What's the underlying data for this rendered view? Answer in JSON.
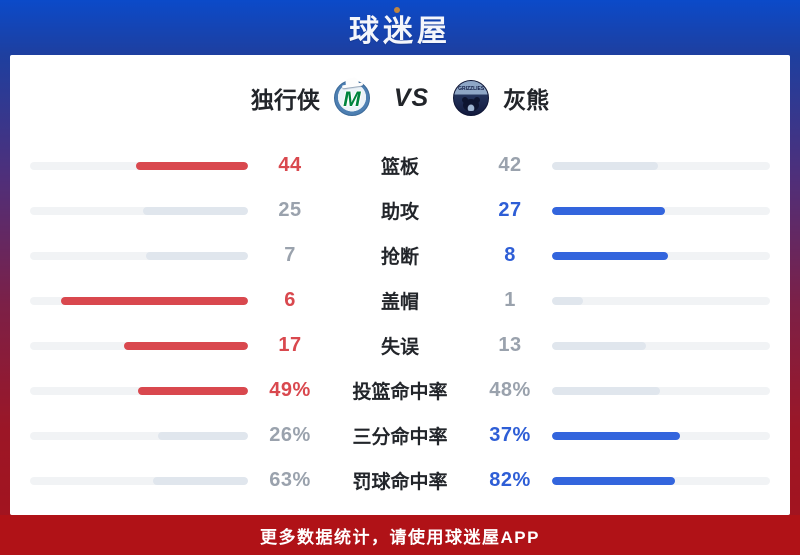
{
  "header": {
    "logo_text": "球迷屋"
  },
  "match": {
    "home_name": "独行侠",
    "away_name": "灰熊",
    "vs_label": "VS",
    "home_logo_letter": "M",
    "away_logo_text": "GRIZZLIES"
  },
  "stats": [
    {
      "label": "篮板",
      "home": "44",
      "away": "42",
      "winner": "home",
      "home_pct": 51.2,
      "away_pct": 48.8
    },
    {
      "label": "助攻",
      "home": "25",
      "away": "27",
      "winner": "away",
      "home_pct": 48.1,
      "away_pct": 51.9
    },
    {
      "label": "抢断",
      "home": "7",
      "away": "8",
      "winner": "away",
      "home_pct": 46.7,
      "away_pct": 53.3
    },
    {
      "label": "盖帽",
      "home": "6",
      "away": "1",
      "winner": "home",
      "home_pct": 85.7,
      "away_pct": 14.3
    },
    {
      "label": "失误",
      "home": "17",
      "away": "13",
      "winner": "home",
      "home_pct": 56.7,
      "away_pct": 43.3
    },
    {
      "label": "投篮命中率",
      "home": "49%",
      "away": "48%",
      "winner": "home",
      "home_pct": 50.5,
      "away_pct": 49.5
    },
    {
      "label": "三分命中率",
      "home": "26%",
      "away": "37%",
      "winner": "away",
      "home_pct": 41.3,
      "away_pct": 58.7
    },
    {
      "label": "罚球命中率",
      "home": "63%",
      "away": "82%",
      "winner": "away",
      "home_pct": 43.4,
      "away_pct": 56.6
    }
  ],
  "footer": {
    "text": "更多数据统计，请使用球迷屋APP"
  },
  "colors": {
    "home_accent": "#d9484e",
    "away_accent": "#3365dd",
    "neutral_value": "#9aa2ad",
    "bar_track": "#f1f3f5",
    "loser_fill": "#e0e6ed",
    "header_blue": "#0b4ac9",
    "footer_red": "#b01217"
  }
}
